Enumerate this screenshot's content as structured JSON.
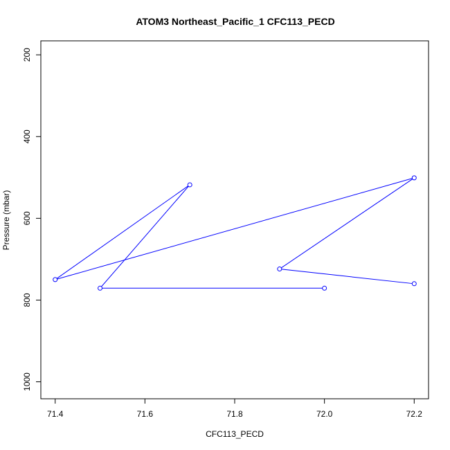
{
  "chart_data": {
    "type": "line",
    "title": "ATOM3 Northeast_Pacific_1 CFC113_PECD",
    "xlabel": "CFC113_PECD",
    "ylabel": "Pressure (mbar)",
    "xlim": [
      71.4,
      72.2
    ],
    "ylim": [
      1000,
      200
    ],
    "y_reversed": true,
    "x_ticks": [
      71.4,
      71.6,
      71.8,
      72.0,
      72.2
    ],
    "x_tick_labels": [
      "71.4",
      "71.6",
      "71.8",
      "72.0",
      "72.2"
    ],
    "y_ticks": [
      200,
      400,
      600,
      800,
      1000
    ],
    "y_tick_labels": [
      "200",
      "400",
      "600",
      "800",
      "1000"
    ],
    "grid": false,
    "series": [
      {
        "color": "#0000ff",
        "marker": "open-circle",
        "x": [
          72.2,
          71.9,
          72.2
        ],
        "y": [
          760,
          724,
          501
        ]
      },
      {
        "color": "#0000ff",
        "marker": "open-circle",
        "x": [
          71.4,
          71.7,
          71.5,
          72.0
        ],
        "y": [
          750,
          518,
          771,
          771
        ]
      }
    ],
    "connectors": [
      {
        "color": "#0000ff",
        "from": [
          72.2,
          501
        ],
        "to": [
          71.4,
          750
        ]
      }
    ]
  }
}
